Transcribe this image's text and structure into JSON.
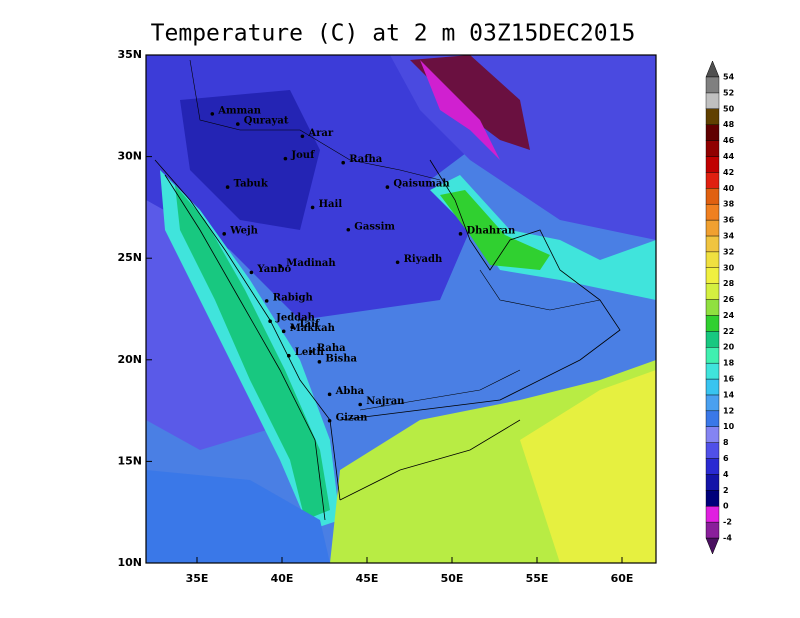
{
  "title": "Temperature (C) at 2 m 03Z15DEC2015",
  "map": {
    "lonlim": [
      32,
      62
    ],
    "latlim": [
      10,
      35
    ],
    "lon_ticks": [
      {
        "value": 35,
        "label": "35E"
      },
      {
        "value": 40,
        "label": "40E"
      },
      {
        "value": 45,
        "label": "45E"
      },
      {
        "value": 50,
        "label": "50E"
      },
      {
        "value": 55,
        "label": "55E"
      },
      {
        "value": 60,
        "label": "60E"
      }
    ],
    "lat_ticks": [
      {
        "value": 35,
        "label": "35N"
      },
      {
        "value": 30,
        "label": "30N"
      },
      {
        "value": 25,
        "label": "25N"
      },
      {
        "value": 20,
        "label": "20N"
      },
      {
        "value": 15,
        "label": "15N"
      },
      {
        "value": 10,
        "label": "10N"
      }
    ],
    "cities": [
      {
        "name": "Amman",
        "lon": 35.9,
        "lat": 32.1
      },
      {
        "name": "Qurayat",
        "lon": 37.4,
        "lat": 31.6
      },
      {
        "name": "Arar",
        "lon": 41.2,
        "lat": 31.0
      },
      {
        "name": "Jouf",
        "lon": 40.2,
        "lat": 29.9
      },
      {
        "name": "Rafha",
        "lon": 43.6,
        "lat": 29.7
      },
      {
        "name": "Qaisumah",
        "lon": 46.2,
        "lat": 28.5
      },
      {
        "name": "Tabuk",
        "lon": 36.8,
        "lat": 28.5
      },
      {
        "name": "Hail",
        "lon": 41.8,
        "lat": 27.5
      },
      {
        "name": "Gassim",
        "lon": 43.9,
        "lat": 26.4
      },
      {
        "name": "Dhahran",
        "lon": 50.5,
        "lat": 26.2
      },
      {
        "name": "Wejh",
        "lon": 36.6,
        "lat": 26.2
      },
      {
        "name": "Riyadh",
        "lon": 46.8,
        "lat": 24.8
      },
      {
        "name": "Madinah",
        "lon": 39.9,
        "lat": 24.6
      },
      {
        "name": "Yanbo",
        "lon": 38.2,
        "lat": 24.3
      },
      {
        "name": "Rabigh",
        "lon": 39.1,
        "lat": 22.9
      },
      {
        "name": "Jeddah",
        "lon": 39.3,
        "lat": 21.9
      },
      {
        "name": "Taif",
        "lon": 40.6,
        "lat": 21.6
      },
      {
        "name": "Makkah",
        "lon": 40.1,
        "lat": 21.4
      },
      {
        "name": "Raha",
        "lon": 41.7,
        "lat": 20.4
      },
      {
        "name": "Leith",
        "lon": 40.4,
        "lat": 20.2
      },
      {
        "name": "Bisha",
        "lon": 42.2,
        "lat": 19.9
      },
      {
        "name": "Abha",
        "lon": 42.8,
        "lat": 18.3
      },
      {
        "name": "Najran",
        "lon": 44.6,
        "lat": 17.8
      },
      {
        "name": "Gizan",
        "lon": 42.8,
        "lat": 17.0
      }
    ]
  },
  "colorbar": {
    "levels": [
      -4,
      -2,
      0,
      2,
      4,
      6,
      8,
      10,
      12,
      14,
      16,
      18,
      20,
      22,
      24,
      26,
      28,
      30,
      32,
      34,
      36,
      38,
      40,
      42,
      44,
      46,
      48,
      50,
      52,
      54
    ],
    "colors": [
      "#4a1060",
      "#8a1f9b",
      "#e020e0",
      "#00007a",
      "#1414a8",
      "#2a2ad2",
      "#5050e8",
      "#8484f2",
      "#3a78e8",
      "#4aa0f0",
      "#38c4f0",
      "#40e4dc",
      "#40f0b0",
      "#18c880",
      "#30d030",
      "#90e040",
      "#d4f040",
      "#f0f040",
      "#f0e040",
      "#f0c440",
      "#f0a030",
      "#f08020",
      "#e06010",
      "#e02010",
      "#c00000",
      "#900000",
      "#600000",
      "#604000",
      "#c0c0c0",
      "#808080",
      "#505050"
    ]
  }
}
